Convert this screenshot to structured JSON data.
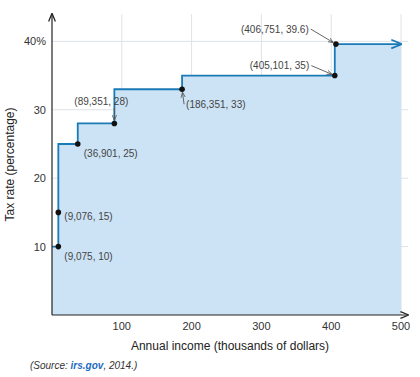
{
  "chart_data": {
    "type": "line",
    "xlabel": "Annual income (thousands of dollars)",
    "ylabel": "Tax rate (percentage)",
    "xlim": [
      0,
      510
    ],
    "ylim": [
      0,
      44
    ],
    "xticks": [
      100,
      200,
      300,
      400,
      500
    ],
    "yticks": [
      10,
      20,
      30,
      {
        "value": 40,
        "label": "40%"
      }
    ],
    "grid": true,
    "series": [
      {
        "type": "area",
        "color": "#cce3f5",
        "x": [
          0,
          9.075,
          9.075,
          9.076,
          9.076,
          36.901,
          36.901,
          89.351,
          89.351,
          186.351,
          186.351,
          405.101,
          405.101,
          406.751,
          406.751,
          500
        ],
        "values": [
          10,
          10,
          15,
          15,
          25,
          25,
          28,
          28,
          33,
          33,
          35,
          35,
          39.6,
          39.6,
          39.6,
          39.6
        ]
      },
      {
        "type": "line",
        "color": "#1a7ab5",
        "marker": "arrow",
        "x": [
          0,
          9.075,
          9.075,
          9.076,
          9.076,
          36.901,
          36.901,
          89.351,
          89.351,
          186.351,
          186.351,
          405.101,
          405.101,
          406.751,
          406.751,
          500
        ],
        "values": [
          10,
          10,
          15,
          15,
          25,
          25,
          28,
          28,
          33,
          33,
          35,
          35,
          39.6,
          39.6,
          39.6,
          39.6
        ]
      },
      {
        "type": "scatter",
        "color": "#111111",
        "x": [
          9.075,
          9.076,
          36.901,
          89.351,
          186.351,
          405.101,
          406.751
        ],
        "values": [
          10,
          15,
          25,
          28,
          33,
          35,
          39.6
        ]
      }
    ],
    "annotations": [
      {
        "text": "(9,075, 10)",
        "x": 9.075,
        "y": 10
      },
      {
        "text": "(9,076, 15)",
        "x": 9.076,
        "y": 15
      },
      {
        "text": "(36,901, 25)",
        "x": 36.901,
        "y": 25
      },
      {
        "text": "(89,351, 28)",
        "x": 89.351,
        "y": 28
      },
      {
        "text": "(186,351, 33)",
        "x": 186.351,
        "y": 33
      },
      {
        "text": "(405,101, 35)",
        "x": 405.101,
        "y": 35
      },
      {
        "text": "(406,751, 39.6)",
        "x": 406.751,
        "y": 39.6
      }
    ],
    "source": [
      "(Source: ",
      "irs.gov",
      ", 2014.)"
    ]
  }
}
